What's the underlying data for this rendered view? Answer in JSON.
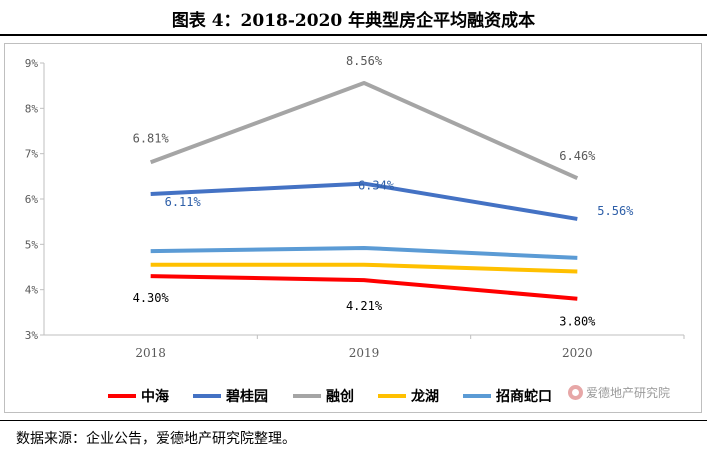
{
  "page": {
    "title": "图表 4：2018-2020 年典型房企平均融资成本",
    "source": "数据来源：企业公告，爱德地产研究院整理。",
    "watermark": "爱德地产研究院"
  },
  "chart_data": {
    "type": "line",
    "title": "",
    "xlabel": "",
    "ylabel": "",
    "categories": [
      "2018",
      "2019",
      "2020"
    ],
    "ylim": [
      3,
      9
    ],
    "yticks": [
      "3%",
      "4%",
      "5%",
      "6%",
      "7%",
      "8%",
      "9%"
    ],
    "grid": false,
    "legend": "bottom",
    "series": [
      {
        "name": "中海",
        "color": "#ff0000",
        "values": [
          4.3,
          4.21,
          3.8
        ],
        "labels": [
          "4.30%",
          "4.21%",
          "3.80%"
        ],
        "label_color": "#000000"
      },
      {
        "name": "碧桂园",
        "color": "#4472c4",
        "values": [
          6.11,
          6.34,
          5.56
        ],
        "labels": [
          "6.11%",
          "6.34%",
          "5.56%"
        ],
        "label_color": "#2e5fa8"
      },
      {
        "name": "融创",
        "color": "#a5a5a5",
        "values": [
          6.81,
          8.56,
          6.46
        ],
        "labels": [
          "6.81%",
          "8.56%",
          "6.46%"
        ],
        "label_color": "#595959"
      },
      {
        "name": "龙湖",
        "color": "#ffc000",
        "values": [
          4.55,
          4.55,
          4.4
        ],
        "labels": [],
        "label_color": "#000000"
      },
      {
        "name": "招商蛇口",
        "color": "#5b9bd5",
        "values": [
          4.85,
          4.92,
          4.7
        ],
        "labels": [],
        "label_color": "#000000"
      }
    ]
  }
}
